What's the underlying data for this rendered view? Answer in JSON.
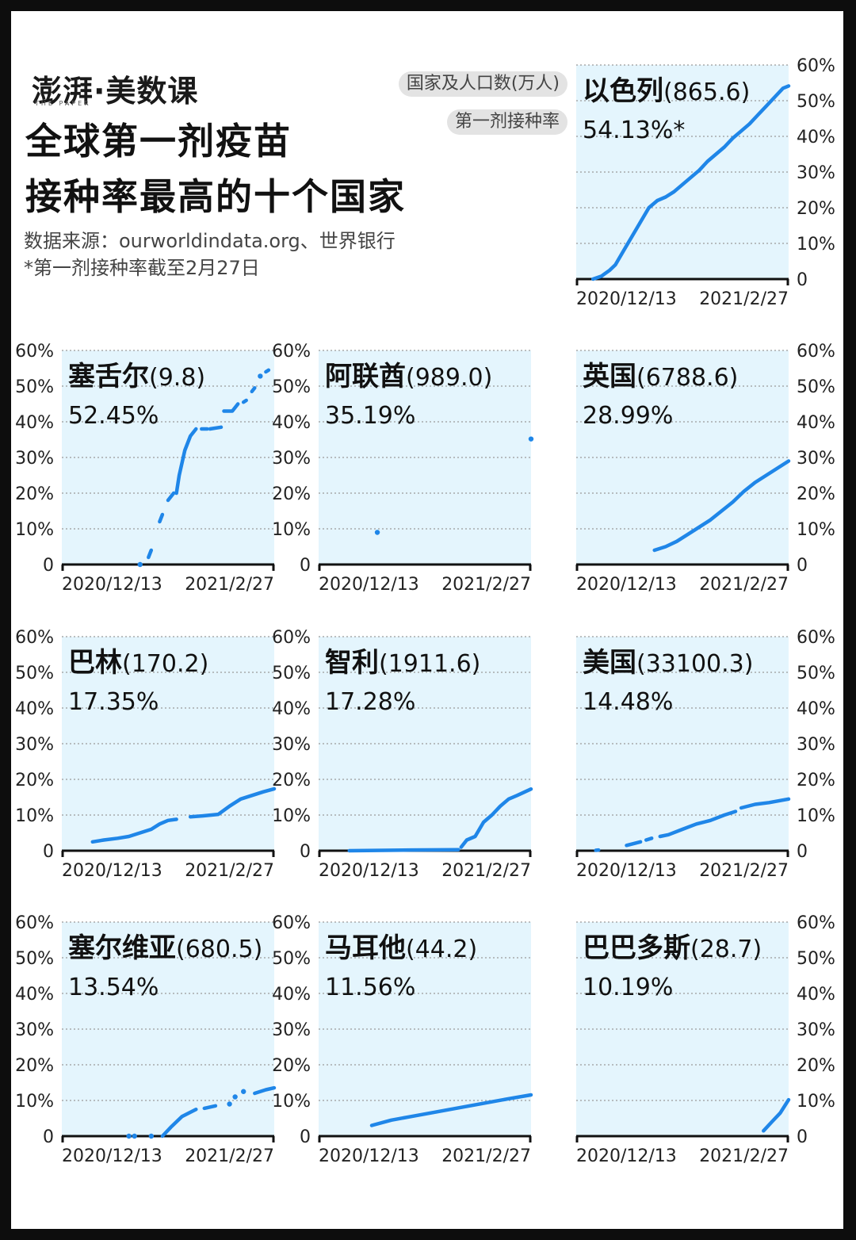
{
  "header": {
    "logo": "澎湃·美数课",
    "logo_sub": "THE PAPER",
    "title_line1": "全球第一剂疫苗",
    "title_line2": "接种率最高的十个国家",
    "source": "数据来源：ourworldindata.org、世界银行",
    "note": "*第一剂接种率截至2月27日",
    "legend_country": "国家及人口数(万人)",
    "legend_rate": "第一剂接种率"
  },
  "colors": {
    "line": "#1f86e8",
    "panel_bg": "#e4f5fd",
    "grid": "#9a9a9a",
    "text": "#111111"
  },
  "chart_data": [
    {
      "type": "line",
      "country": "以色列",
      "population": "(865.6)",
      "rate_label": "54.13%*",
      "x_ticks": [
        "2020/12/13",
        "2021/2/27"
      ],
      "y_ticks": [
        "0",
        "10%",
        "20%",
        "30%",
        "40%",
        "50%",
        "60%"
      ],
      "ylim": [
        0,
        60
      ],
      "segments": [
        [
          [
            "2020-12-19",
            0
          ],
          [
            "2020-12-22",
            0.8
          ],
          [
            "2020-12-25",
            2.5
          ],
          [
            "2020-12-27",
            4
          ],
          [
            "2020-12-30",
            8
          ],
          [
            "2021-01-02",
            12
          ],
          [
            "2021-01-05",
            16
          ],
          [
            "2021-01-08",
            20
          ],
          [
            "2021-01-11",
            22
          ],
          [
            "2021-01-14",
            23
          ],
          [
            "2021-01-17",
            24.5
          ],
          [
            "2021-01-20",
            26.5
          ],
          [
            "2021-01-23",
            28.5
          ],
          [
            "2021-01-26",
            30.5
          ],
          [
            "2021-01-29",
            33
          ],
          [
            "2021-02-01",
            35
          ],
          [
            "2021-02-04",
            37
          ],
          [
            "2021-02-07",
            39.5
          ],
          [
            "2021-02-10",
            41.5
          ],
          [
            "2021-02-13",
            43.5
          ],
          [
            "2021-02-16",
            46
          ],
          [
            "2021-02-19",
            48.5
          ],
          [
            "2021-02-22",
            51
          ],
          [
            "2021-02-25",
            53.5
          ],
          [
            "2021-02-27",
            54.13
          ]
        ]
      ]
    },
    {
      "type": "line",
      "country": "塞舌尔",
      "population": "(9.8)",
      "rate_label": "52.45%",
      "x_ticks": [
        "2020/12/13",
        "2021/2/27"
      ],
      "y_ticks": [
        "0",
        "10%",
        "20%",
        "30%",
        "40%",
        "50%",
        "60%"
      ],
      "ylim": [
        0,
        60
      ],
      "segments": [
        [
          [
            "2021-01-10",
            0
          ]
        ],
        [
          [
            "2021-01-13",
            2
          ],
          [
            "2021-01-14",
            4
          ]
        ],
        [
          [
            "2021-01-17",
            12
          ],
          [
            "2021-01-18",
            14
          ]
        ],
        [
          [
            "2021-01-20",
            18
          ],
          [
            "2021-01-22",
            20
          ]
        ],
        [
          [
            "2021-01-23",
            20
          ],
          [
            "2021-01-24",
            25
          ],
          [
            "2021-01-26",
            32
          ],
          [
            "2021-01-28",
            36
          ],
          [
            "2021-01-30",
            38
          ]
        ],
        [
          [
            "2021-02-01",
            38
          ],
          [
            "2021-02-03",
            38
          ]
        ],
        [
          [
            "2021-02-04",
            38
          ],
          [
            "2021-02-08",
            38.5
          ]
        ],
        [
          [
            "2021-02-09",
            43
          ],
          [
            "2021-02-12",
            43
          ],
          [
            "2021-02-14",
            45
          ]
        ],
        [
          [
            "2021-02-16",
            45.5
          ],
          [
            "2021-02-17",
            46
          ]
        ],
        [
          [
            "2021-02-19",
            48.5
          ],
          [
            "2021-02-20",
            49.5
          ]
        ],
        [
          [
            "2021-02-22",
            52.8
          ]
        ],
        [
          [
            "2021-02-24",
            54
          ],
          [
            "2021-02-25",
            54.5
          ]
        ]
      ]
    },
    {
      "type": "line",
      "country": "阿联酋",
      "population": "(989.0)",
      "rate_label": "35.19%",
      "x_ticks": [
        "2020/12/13",
        "2021/2/27"
      ],
      "y_ticks": [
        "0",
        "10%",
        "20%",
        "30%",
        "40%",
        "50%",
        "60%"
      ],
      "ylim": [
        0,
        60
      ],
      "segments": [
        [
          [
            "2021-01-03",
            9
          ]
        ],
        [
          [
            "2021-02-27",
            35.19
          ]
        ]
      ]
    },
    {
      "type": "line",
      "country": "英国",
      "population": "(6788.6)",
      "rate_label": "28.99%",
      "x_ticks": [
        "2020/12/13",
        "2021/2/27"
      ],
      "y_ticks": [
        "0",
        "10%",
        "20%",
        "30%",
        "40%",
        "50%",
        "60%"
      ],
      "ylim": [
        0,
        60
      ],
      "segments": [
        [
          [
            "2021-01-10",
            4
          ],
          [
            "2021-01-14",
            5
          ],
          [
            "2021-01-18",
            6.5
          ],
          [
            "2021-01-22",
            8.5
          ],
          [
            "2021-01-26",
            10.5
          ],
          [
            "2021-01-30",
            12.5
          ],
          [
            "2021-02-03",
            15
          ],
          [
            "2021-02-07",
            17.5
          ],
          [
            "2021-02-11",
            20.5
          ],
          [
            "2021-02-15",
            23
          ],
          [
            "2021-02-19",
            25
          ],
          [
            "2021-02-23",
            27
          ],
          [
            "2021-02-27",
            28.99
          ]
        ]
      ]
    },
    {
      "type": "line",
      "country": "巴林",
      "population": "(170.2)",
      "rate_label": "17.35%",
      "x_ticks": [
        "2020/12/13",
        "2021/2/27"
      ],
      "y_ticks": [
        "0",
        "10%",
        "20%",
        "30%",
        "40%",
        "50%",
        "60%"
      ],
      "ylim": [
        0,
        60
      ],
      "segments": [
        [
          [
            "2020-12-24",
            2.5
          ],
          [
            "2020-12-28",
            3
          ],
          [
            "2021-01-02",
            3.5
          ],
          [
            "2021-01-06",
            4
          ],
          [
            "2021-01-10",
            5
          ],
          [
            "2021-01-14",
            6
          ],
          [
            "2021-01-17",
            7.5
          ],
          [
            "2021-01-20",
            8.5
          ],
          [
            "2021-01-23",
            8.8
          ]
        ],
        [
          [
            "2021-01-28",
            9.5
          ],
          [
            "2021-02-02",
            9.8
          ],
          [
            "2021-02-07",
            10.2
          ],
          [
            "2021-02-11",
            12.5
          ],
          [
            "2021-02-15",
            14.5
          ],
          [
            "2021-02-19",
            15.5
          ],
          [
            "2021-02-23",
            16.5
          ],
          [
            "2021-02-27",
            17.35
          ]
        ]
      ]
    },
    {
      "type": "line",
      "country": "智利",
      "population": "(1911.6)",
      "rate_label": "17.28%",
      "x_ticks": [
        "2020/12/13",
        "2021/2/27"
      ],
      "y_ticks": [
        "0",
        "10%",
        "20%",
        "30%",
        "40%",
        "50%",
        "60%"
      ],
      "ylim": [
        0,
        60
      ],
      "segments": [
        [
          [
            "2020-12-24",
            0
          ],
          [
            "2021-01-15",
            0.2
          ],
          [
            "2021-02-01",
            0.3
          ]
        ],
        [
          [
            "2021-02-02",
            1
          ],
          [
            "2021-02-04",
            3
          ],
          [
            "2021-02-07",
            4
          ],
          [
            "2021-02-10",
            8
          ],
          [
            "2021-02-13",
            10
          ],
          [
            "2021-02-16",
            12.5
          ],
          [
            "2021-02-19",
            14.5
          ],
          [
            "2021-02-22",
            15.5
          ],
          [
            "2021-02-27",
            17.28
          ]
        ]
      ]
    },
    {
      "type": "line",
      "country": "美国",
      "population": "(33100.3)",
      "rate_label": "14.48%",
      "x_ticks": [
        "2020/12/13",
        "2021/2/27"
      ],
      "y_ticks": [
        "0",
        "10%",
        "20%",
        "30%",
        "40%",
        "50%",
        "60%"
      ],
      "ylim": [
        0,
        60
      ],
      "segments": [
        [
          [
            "2020-12-20",
            0.1
          ],
          [
            "2020-12-21",
            0.2
          ]
        ],
        [
          [
            "2020-12-31",
            1.5
          ],
          [
            "2021-01-05",
            2.5
          ]
        ],
        [
          [
            "2021-01-07",
            3
          ],
          [
            "2021-01-09",
            3.5
          ]
        ],
        [
          [
            "2021-01-12",
            4
          ],
          [
            "2021-01-15",
            4.5
          ],
          [
            "2021-01-20",
            6
          ],
          [
            "2021-01-25",
            7.5
          ],
          [
            "2021-01-30",
            8.5
          ],
          [
            "2021-02-04",
            10
          ],
          [
            "2021-02-08",
            11
          ]
        ],
        [
          [
            "2021-02-10",
            12
          ],
          [
            "2021-02-15",
            13
          ],
          [
            "2021-02-20",
            13.5
          ],
          [
            "2021-02-27",
            14.48
          ]
        ]
      ]
    },
    {
      "type": "line",
      "country": "塞尔维亚",
      "population": "(680.5)",
      "rate_label": "13.54%",
      "x_ticks": [
        "2020/12/13",
        "2021/2/27"
      ],
      "y_ticks": [
        "0",
        "10%",
        "20%",
        "30%",
        "40%",
        "50%",
        "60%"
      ],
      "ylim": [
        0,
        60
      ],
      "segments": [
        [
          [
            "2021-01-06",
            0
          ]
        ],
        [
          [
            "2021-01-08",
            0
          ]
        ],
        [
          [
            "2021-01-14",
            0
          ]
        ],
        [
          [
            "2021-01-18",
            0
          ],
          [
            "2021-01-21",
            2.5
          ],
          [
            "2021-01-25",
            5.5
          ],
          [
            "2021-01-30",
            7.5
          ]
        ],
        [
          [
            "2021-02-02",
            7.8
          ],
          [
            "2021-02-06",
            8.5
          ]
        ],
        [
          [
            "2021-02-11",
            9
          ]
        ],
        [
          [
            "2021-02-13",
            11
          ]
        ],
        [
          [
            "2021-02-16",
            12.5
          ]
        ],
        [
          [
            "2021-02-20",
            12
          ],
          [
            "2021-02-24",
            13
          ],
          [
            "2021-02-27",
            13.54
          ]
        ]
      ]
    },
    {
      "type": "line",
      "country": "马耳他",
      "population": "(44.2)",
      "rate_label": "11.56%",
      "x_ticks": [
        "2020/12/13",
        "2021/2/27"
      ],
      "y_ticks": [
        "0",
        "10%",
        "20%",
        "30%",
        "40%",
        "50%",
        "60%"
      ],
      "ylim": [
        0,
        60
      ],
      "segments": [
        [
          [
            "2021-01-01",
            3
          ],
          [
            "2021-01-08",
            4.5
          ],
          [
            "2021-01-15",
            5.5
          ],
          [
            "2021-01-22",
            6.5
          ],
          [
            "2021-01-29",
            7.5
          ],
          [
            "2021-02-05",
            8.5
          ],
          [
            "2021-02-12",
            9.5
          ],
          [
            "2021-02-19",
            10.5
          ],
          [
            "2021-02-27",
            11.56
          ]
        ]
      ]
    },
    {
      "type": "line",
      "country": "巴巴多斯",
      "population": "(28.7)",
      "rate_label": "10.19%",
      "x_ticks": [
        "2020/12/13",
        "2021/2/27"
      ],
      "y_ticks": [
        "0",
        "10%",
        "20%",
        "30%",
        "40%",
        "50%",
        "60%"
      ],
      "ylim": [
        0,
        60
      ],
      "segments": [
        [
          [
            "2021-02-18",
            1.5
          ],
          [
            "2021-02-21",
            4
          ],
          [
            "2021-02-24",
            6.5
          ],
          [
            "2021-02-27",
            10.19
          ]
        ]
      ]
    }
  ]
}
